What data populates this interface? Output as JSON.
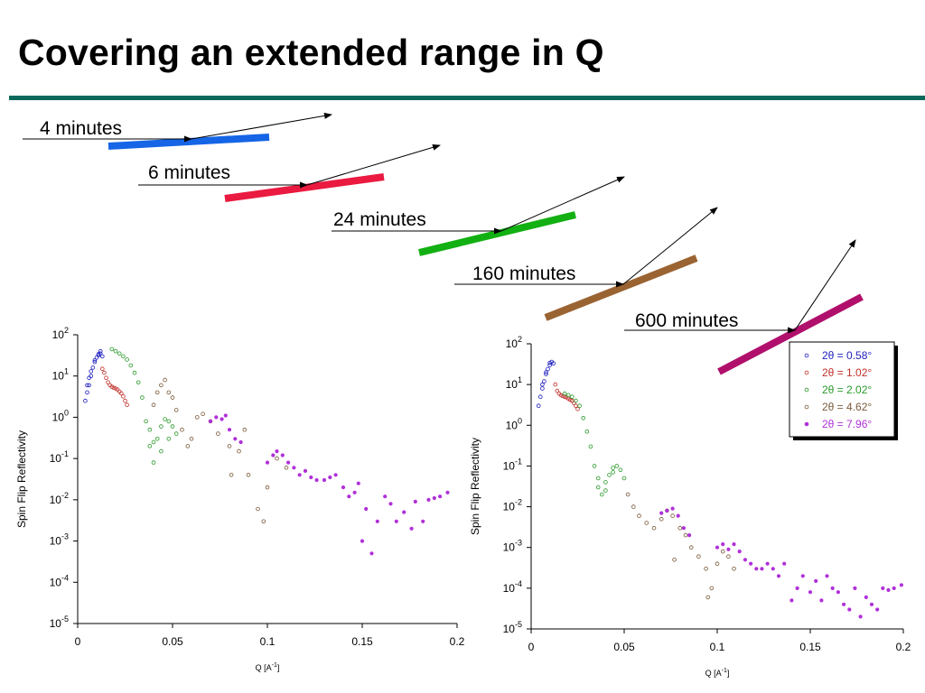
{
  "slide": {
    "title": "Covering an extended range in Q"
  },
  "colors": {
    "title_rule": "#0b6a5c",
    "series": [
      "#1f1fc0",
      "#c0302a",
      "#2c9a2c",
      "#7a5a3a",
      "#b030d8"
    ]
  },
  "scans": [
    {
      "label": "4 minutes",
      "color": "#1565e6"
    },
    {
      "label": "6 minutes",
      "color": "#ea1a40"
    },
    {
      "label": "24 minutes",
      "color": "#12b012"
    },
    {
      "label": "160 minutes",
      "color": "#9a6332"
    },
    {
      "label": "600 minutes",
      "color": "#b0106c"
    }
  ],
  "chart_data": [
    {
      "type": "scatter",
      "title": "",
      "xlabel": "Q [A-1]",
      "ylabel": "Spin Flip Reflectivity",
      "xlim": [
        0,
        0.2
      ],
      "ylim": [
        1e-05,
        100
      ],
      "yscale": "log",
      "x_ticks": [
        "0",
        "0.05",
        "0.1",
        "0.15",
        "0.2"
      ],
      "y_ticks": [
        "10^2",
        "10^1",
        "10^0",
        "10^-1",
        "10^-2",
        "10^-3",
        "10^-4",
        "10^-5"
      ],
      "legend": false,
      "series": [
        {
          "points": [
            [
              0.004,
              2.5
            ],
            [
              0.005,
              4
            ],
            [
              0.006,
              6
            ],
            [
              0.007,
              10
            ],
            [
              0.008,
              16
            ],
            [
              0.009,
              22
            ],
            [
              0.01,
              28
            ],
            [
              0.011,
              32
            ],
            [
              0.012,
              35
            ],
            [
              0.013,
              30
            ],
            [
              0.005,
              6
            ],
            [
              0.006,
              9
            ],
            [
              0.007,
              13
            ],
            [
              0.009,
              24
            ],
            [
              0.011,
              34
            ],
            [
              0.012,
              40
            ]
          ]
        },
        {
          "points": [
            [
              0.013,
              15
            ],
            [
              0.014,
              12
            ],
            [
              0.015,
              9
            ],
            [
              0.016,
              7
            ],
            [
              0.017,
              6
            ],
            [
              0.018,
              5.5
            ],
            [
              0.019,
              5.2
            ],
            [
              0.02,
              5
            ],
            [
              0.021,
              4.7
            ],
            [
              0.022,
              4.2
            ],
            [
              0.023,
              3.8
            ],
            [
              0.024,
              3.2
            ],
            [
              0.025,
              2.5
            ],
            [
              0.026,
              2
            ]
          ]
        },
        {
          "points": [
            [
              0.018,
              45
            ],
            [
              0.02,
              40
            ],
            [
              0.022,
              35
            ],
            [
              0.024,
              30
            ],
            [
              0.026,
              25
            ],
            [
              0.028,
              18
            ],
            [
              0.03,
              12
            ],
            [
              0.032,
              7
            ],
            [
              0.034,
              3
            ],
            [
              0.036,
              0.8
            ],
            [
              0.038,
              0.2
            ],
            [
              0.04,
              0.08
            ],
            [
              0.042,
              0.3
            ],
            [
              0.044,
              0.6
            ],
            [
              0.046,
              0.9
            ],
            [
              0.048,
              0.8
            ],
            [
              0.05,
              0.6
            ],
            [
              0.052,
              0.4
            ],
            [
              0.038,
              0.5
            ],
            [
              0.04,
              0.25
            ],
            [
              0.044,
              0.15
            ],
            [
              0.048,
              0.3
            ]
          ]
        },
        {
          "points": [
            [
              0.04,
              2
            ],
            [
              0.042,
              4
            ],
            [
              0.044,
              6
            ],
            [
              0.046,
              8
            ],
            [
              0.048,
              4
            ],
            [
              0.05,
              3
            ],
            [
              0.052,
              1.5
            ],
            [
              0.055,
              0.5
            ],
            [
              0.058,
              0.2
            ],
            [
              0.06,
              0.3
            ],
            [
              0.063,
              1
            ],
            [
              0.066,
              1.2
            ],
            [
              0.07,
              0.8
            ],
            [
              0.074,
              0.4
            ],
            [
              0.08,
              0.2
            ],
            [
              0.085,
              0.15
            ],
            [
              0.09,
              0.04
            ],
            [
              0.095,
              0.006
            ],
            [
              0.098,
              0.003
            ],
            [
              0.1,
              0.02
            ],
            [
              0.105,
              0.1
            ],
            [
              0.11,
              0.06
            ],
            [
              0.081,
              0.04
            ],
            [
              0.088,
              0.5
            ]
          ]
        },
        {
          "points": [
            [
              0.07,
              0.8
            ],
            [
              0.073,
              1
            ],
            [
              0.076,
              0.9
            ],
            [
              0.078,
              1.1
            ],
            [
              0.08,
              0.5
            ],
            [
              0.083,
              0.3
            ],
            [
              0.086,
              0.25
            ],
            [
              0.1,
              0.08
            ],
            [
              0.103,
              0.12
            ],
            [
              0.105,
              0.15
            ],
            [
              0.108,
              0.12
            ],
            [
              0.111,
              0.08
            ],
            [
              0.114,
              0.06
            ],
            [
              0.117,
              0.04
            ],
            [
              0.12,
              0.05
            ],
            [
              0.123,
              0.035
            ],
            [
              0.126,
              0.03
            ],
            [
              0.13,
              0.03
            ],
            [
              0.133,
              0.035
            ],
            [
              0.136,
              0.04
            ],
            [
              0.14,
              0.02
            ],
            [
              0.143,
              0.012
            ],
            [
              0.146,
              0.015
            ],
            [
              0.148,
              0.025
            ],
            [
              0.15,
              0.001
            ],
            [
              0.152,
              0.006
            ],
            [
              0.155,
              0.0005
            ],
            [
              0.158,
              0.003
            ],
            [
              0.162,
              0.012
            ],
            [
              0.165,
              0.008
            ],
            [
              0.168,
              0.003
            ],
            [
              0.172,
              0.005
            ],
            [
              0.176,
              0.002
            ],
            [
              0.178,
              0.009
            ],
            [
              0.182,
              0.003
            ],
            [
              0.185,
              0.01
            ],
            [
              0.188,
              0.011
            ],
            [
              0.191,
              0.012
            ],
            [
              0.195,
              0.015
            ]
          ]
        }
      ]
    },
    {
      "type": "scatter",
      "title": "",
      "xlabel": "Q [A-1]",
      "ylabel": "Spin Flip Reflectivity",
      "xlim": [
        0,
        0.2
      ],
      "ylim": [
        1e-05,
        100
      ],
      "yscale": "log",
      "x_ticks": [
        "0",
        "0.05",
        "0.1",
        "0.15",
        "0.2"
      ],
      "y_ticks": [
        "10^2",
        "10^1",
        "10^0",
        "10^-1",
        "10^-2",
        "10^-3",
        "10^-4",
        "10^-5"
      ],
      "legend": true,
      "legend_position": "top-right",
      "series": [
        {
          "name": "2θ = 0.58°",
          "points": [
            [
              0.004,
              3
            ],
            [
              0.005,
              5
            ],
            [
              0.006,
              8
            ],
            [
              0.007,
              12
            ],
            [
              0.008,
              18
            ],
            [
              0.009,
              24
            ],
            [
              0.01,
              30
            ],
            [
              0.011,
              36
            ],
            [
              0.012,
              33
            ],
            [
              0.006,
              10
            ],
            [
              0.008,
              20
            ],
            [
              0.01,
              34
            ]
          ]
        },
        {
          "name": "2θ = 1.02°",
          "points": [
            [
              0.013,
              10
            ],
            [
              0.014,
              7
            ],
            [
              0.015,
              6
            ],
            [
              0.016,
              5.5
            ],
            [
              0.017,
              5.2
            ],
            [
              0.018,
              5
            ],
            [
              0.019,
              4.8
            ],
            [
              0.02,
              4.5
            ],
            [
              0.021,
              4.2
            ],
            [
              0.022,
              4
            ],
            [
              0.023,
              3.5
            ],
            [
              0.024,
              3
            ],
            [
              0.025,
              2.5
            ]
          ]
        },
        {
          "name": "2θ = 2.02°",
          "points": [
            [
              0.018,
              6
            ],
            [
              0.02,
              5.5
            ],
            [
              0.022,
              5
            ],
            [
              0.024,
              4
            ],
            [
              0.026,
              3
            ],
            [
              0.028,
              1.5
            ],
            [
              0.03,
              0.7
            ],
            [
              0.032,
              0.3
            ],
            [
              0.034,
              0.1
            ],
            [
              0.036,
              0.03
            ],
            [
              0.038,
              0.02
            ],
            [
              0.04,
              0.04
            ],
            [
              0.042,
              0.06
            ],
            [
              0.044,
              0.09
            ],
            [
              0.046,
              0.1
            ],
            [
              0.048,
              0.08
            ],
            [
              0.05,
              0.05
            ],
            [
              0.036,
              0.05
            ],
            [
              0.04,
              0.025
            ],
            [
              0.044,
              0.07
            ]
          ]
        },
        {
          "name": "2θ = 4.62°",
          "points": [
            [
              0.052,
              0.02
            ],
            [
              0.055,
              0.01
            ],
            [
              0.058,
              0.006
            ],
            [
              0.062,
              0.004
            ],
            [
              0.066,
              0.003
            ],
            [
              0.07,
              0.005
            ],
            [
              0.073,
              0.008
            ],
            [
              0.076,
              0.006
            ],
            [
              0.08,
              0.003
            ],
            [
              0.083,
              0.002
            ],
            [
              0.086,
              0.001
            ],
            [
              0.09,
              0.0006
            ],
            [
              0.094,
              0.0003
            ],
            [
              0.097,
              0.0001
            ],
            [
              0.1,
              0.0004
            ],
            [
              0.103,
              0.0008
            ],
            [
              0.106,
              0.0006
            ],
            [
              0.109,
              0.0003
            ],
            [
              0.077,
              0.0005
            ],
            [
              0.095,
              6e-05
            ]
          ]
        },
        {
          "name": "2θ = 7.96°",
          "points": [
            [
              0.07,
              0.007
            ],
            [
              0.073,
              0.008
            ],
            [
              0.076,
              0.009
            ],
            [
              0.079,
              0.006
            ],
            [
              0.082,
              0.003
            ],
            [
              0.085,
              0.002
            ],
            [
              0.1,
              0.001
            ],
            [
              0.103,
              0.0012
            ],
            [
              0.106,
              0.0009
            ],
            [
              0.109,
              0.0012
            ],
            [
              0.112,
              0.0008
            ],
            [
              0.115,
              0.0005
            ],
            [
              0.118,
              0.0004
            ],
            [
              0.121,
              0.0003
            ],
            [
              0.124,
              0.0003
            ],
            [
              0.127,
              0.0004
            ],
            [
              0.13,
              0.0003
            ],
            [
              0.133,
              0.0002
            ],
            [
              0.136,
              0.0004
            ],
            [
              0.14,
              5e-05
            ],
            [
              0.143,
              0.0001
            ],
            [
              0.146,
              0.0002
            ],
            [
              0.15,
              8e-05
            ],
            [
              0.153,
              0.00015
            ],
            [
              0.156,
              5e-05
            ],
            [
              0.159,
              0.0002
            ],
            [
              0.162,
              0.0001
            ],
            [
              0.165,
              8e-05
            ],
            [
              0.168,
              4e-05
            ],
            [
              0.171,
              3e-05
            ],
            [
              0.174,
              0.0001
            ],
            [
              0.177,
              2e-05
            ],
            [
              0.18,
              6e-05
            ],
            [
              0.183,
              4e-05
            ],
            [
              0.186,
              3e-05
            ],
            [
              0.189,
              0.0001
            ],
            [
              0.192,
              9e-05
            ],
            [
              0.195,
              0.0001
            ],
            [
              0.199,
              0.00012
            ]
          ]
        }
      ]
    }
  ]
}
